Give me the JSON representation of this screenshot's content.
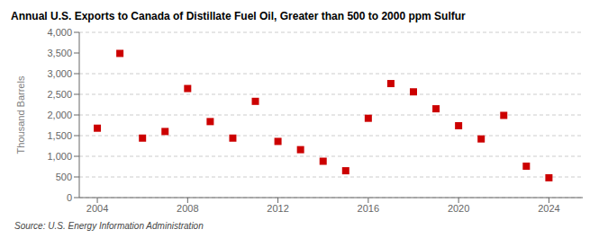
{
  "chart_data": {
    "type": "scatter",
    "title": "Annual U.S. Exports to Canada of Distillate Fuel Oil, Greater than 500 to 2000 ppm Sulfur",
    "ylabel": "Thousand Barrels",
    "annotations": [
      "Source: U.S. Energy Information Administration"
    ],
    "x": [
      2004,
      2005,
      2006,
      2007,
      2008,
      2009,
      2010,
      2011,
      2012,
      2013,
      2014,
      2015,
      2016,
      2017,
      2018,
      2019,
      2020,
      2021,
      2022,
      2023,
      2024
    ],
    "values": [
      1680,
      3490,
      1440,
      1600,
      2640,
      1840,
      1440,
      2330,
      1360,
      1160,
      880,
      650,
      1920,
      2760,
      2560,
      2150,
      1740,
      1420,
      1990,
      760,
      480
    ],
    "color": "#cc0000",
    "marker": "square",
    "xlim": [
      2003.2,
      2025.5
    ],
    "xticks": [
      2004,
      2008,
      2012,
      2016,
      2020,
      2024
    ],
    "ylim": [
      0,
      4000
    ],
    "yticks": [
      0,
      500,
      {
        "value": 1000,
        "label": "1,000"
      },
      {
        "value": 1500,
        "label": "1,500"
      },
      {
        "value": 2000,
        "label": "2,000"
      },
      {
        "value": 2500,
        "label": "2,500"
      },
      {
        "value": 3000,
        "label": "3,000"
      },
      {
        "value": 3500,
        "label": "3,500"
      },
      {
        "value": 4000,
        "label": "4,000"
      }
    ],
    "grid": "y"
  }
}
